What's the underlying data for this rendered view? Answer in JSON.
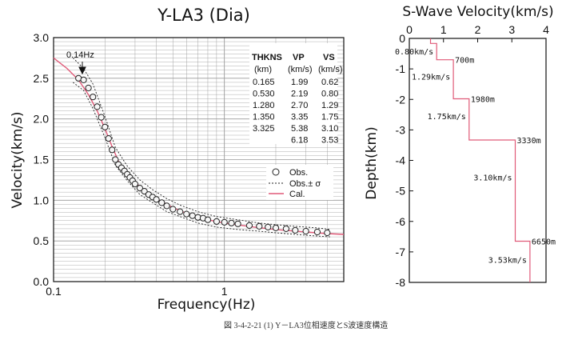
{
  "caption": "図 3-4-2-21 (1)  Y－LA3位相速度とS波速度構造",
  "colors": {
    "obs": "#222222",
    "cal": "#e05a78",
    "profile": "#e05a78",
    "vs_label": "#e06a86",
    "grid": "#9a9a9a"
  },
  "chart_data": [
    {
      "type": "scatter",
      "title": "Y-LA3 (Dia)",
      "xlabel": "Frequency(Hz)",
      "ylabel": "Velocity(km/s)",
      "xscale": "log",
      "xlim": [
        0.1,
        5
      ],
      "ylim": [
        0,
        3
      ],
      "xticks": [
        "0.1",
        "1"
      ],
      "yticks": [
        "0.0",
        "0.5",
        "1.0",
        "1.5",
        "2.0",
        "2.5",
        "3.0"
      ],
      "grid": true,
      "annotation": "0.14Hz",
      "legend": {
        "position": "right",
        "items": [
          "Obs.",
          "Obs.± σ",
          "Cal."
        ]
      },
      "table": {
        "headers": [
          [
            "THKNS",
            "(km)"
          ],
          [
            "VP",
            "(km/s)"
          ],
          [
            "VS",
            "(km/s)"
          ]
        ],
        "rows": [
          [
            "0.165",
            "1.99",
            "0.62"
          ],
          [
            "0.530",
            "2.19",
            "0.80"
          ],
          [
            "1.280",
            "2.70",
            "1.29"
          ],
          [
            "1.350",
            "3.35",
            "1.75"
          ],
          [
            "3.325",
            "5.38",
            "3.10"
          ],
          [
            "",
            "6.18",
            "3.53"
          ]
        ]
      },
      "observed": {
        "x": [
          0.14,
          0.15,
          0.16,
          0.17,
          0.18,
          0.19,
          0.2,
          0.21,
          0.22,
          0.23,
          0.24,
          0.25,
          0.26,
          0.27,
          0.28,
          0.29,
          0.3,
          0.32,
          0.34,
          0.36,
          0.38,
          0.4,
          0.43,
          0.46,
          0.5,
          0.55,
          0.6,
          0.65,
          0.7,
          0.75,
          0.8,
          0.9,
          1.0,
          1.1,
          1.2,
          1.4,
          1.6,
          1.8,
          2.0,
          2.3,
          2.6,
          3.0,
          3.5,
          4.0
        ],
        "y": [
          2.5,
          2.48,
          2.38,
          2.27,
          2.15,
          2.02,
          1.9,
          1.76,
          1.62,
          1.5,
          1.44,
          1.4,
          1.36,
          1.32,
          1.28,
          1.24,
          1.2,
          1.15,
          1.11,
          1.07,
          1.04,
          1.01,
          0.97,
          0.93,
          0.89,
          0.86,
          0.83,
          0.81,
          0.79,
          0.78,
          0.76,
          0.74,
          0.73,
          0.72,
          0.71,
          0.69,
          0.68,
          0.67,
          0.66,
          0.65,
          0.63,
          0.62,
          0.61,
          0.6
        ]
      },
      "sigma": {
        "x": [
          0.13,
          0.15,
          0.17,
          0.2,
          0.23,
          0.27,
          0.32,
          0.38,
          0.46,
          0.55,
          0.7,
          0.9,
          1.2,
          1.6,
          2.0,
          2.6,
          3.5,
          4.2
        ],
        "upper": [
          2.75,
          2.62,
          2.43,
          2.03,
          1.65,
          1.42,
          1.25,
          1.13,
          1.02,
          0.94,
          0.86,
          0.8,
          0.76,
          0.72,
          0.7,
          0.68,
          0.66,
          0.64
        ],
        "lower": [
          2.45,
          2.35,
          2.13,
          1.77,
          1.43,
          1.24,
          1.07,
          0.97,
          0.86,
          0.8,
          0.72,
          0.67,
          0.64,
          0.62,
          0.6,
          0.58,
          0.56,
          0.55
        ]
      },
      "calculated": {
        "x": [
          0.1,
          0.12,
          0.14,
          0.16,
          0.18,
          0.2,
          0.22,
          0.24,
          0.27,
          0.3,
          0.35,
          0.4,
          0.5,
          0.6,
          0.8,
          1.0,
          1.5,
          2.0,
          3.0,
          4.0,
          5.0
        ],
        "y": [
          2.75,
          2.62,
          2.48,
          2.3,
          2.1,
          1.88,
          1.66,
          1.48,
          1.33,
          1.22,
          1.1,
          1.02,
          0.91,
          0.84,
          0.76,
          0.72,
          0.67,
          0.64,
          0.61,
          0.59,
          0.58
        ]
      }
    },
    {
      "type": "line",
      "title": "S-Wave Velocity(km/s)",
      "xlabel": "S-Wave Velocity(km/s)",
      "ylabel": "Depth(km)",
      "xlim": [
        0,
        4
      ],
      "ylim": [
        -8,
        0
      ],
      "xticks": [
        "0",
        "1",
        "2",
        "3",
        "4"
      ],
      "yticks": [
        "0",
        "-1",
        "-2",
        "-3",
        "-4",
        "-5",
        "-6",
        "-7",
        "-8"
      ],
      "layers": [
        {
          "vs": 0.62,
          "top": 0.0,
          "bottom": -0.165
        },
        {
          "vs": 0.8,
          "top": -0.165,
          "bottom": -0.7
        },
        {
          "vs": 1.29,
          "top": -0.7,
          "bottom": -1.98
        },
        {
          "vs": 1.75,
          "top": -1.98,
          "bottom": -3.33
        },
        {
          "vs": 3.1,
          "top": -3.33,
          "bottom": -6.65
        },
        {
          "vs": 3.53,
          "top": -6.65,
          "bottom": -8.0
        }
      ],
      "layer_labels": [
        {
          "text": "0.80km/s",
          "vs": 0.8,
          "depth": -0.42
        },
        {
          "text": "1.29km/s",
          "vs": 1.29,
          "depth": -1.25
        },
        {
          "text": "1.75km/s",
          "vs": 1.75,
          "depth": -2.55
        },
        {
          "text": "3.10km/s",
          "vs": 3.1,
          "depth": -4.55
        },
        {
          "text": "3.53km/s",
          "vs": 3.53,
          "depth": -7.25
        }
      ],
      "depth_labels": [
        {
          "text": "700m",
          "vs": 1.29,
          "depth": -0.7
        },
        {
          "text": "1980m",
          "vs": 1.75,
          "depth": -1.98
        },
        {
          "text": "3330m",
          "vs": 3.1,
          "depth": -3.33
        },
        {
          "text": "6650m",
          "vs": 3.53,
          "depth": -6.65
        }
      ]
    }
  ]
}
